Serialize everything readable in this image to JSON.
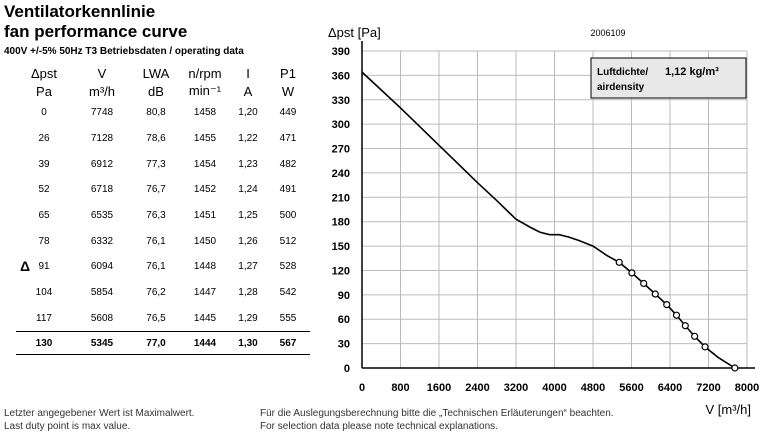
{
  "header": {
    "title_line1": "Ventilatorkennlinie",
    "title_line2": "fan performance curve",
    "subtitle": "400V +/-5% 50Hz T3 Betriebsdaten / operating data"
  },
  "table": {
    "headers": [
      "Δpst",
      "V",
      "LWA",
      "n/rpm",
      "I",
      "P1"
    ],
    "units": [
      "Pa",
      "m³/h",
      "dB",
      "min⁻¹",
      "A",
      "W"
    ],
    "rows": [
      [
        "0",
        "7748",
        "80,8",
        "1458",
        "1,20",
        "449"
      ],
      [
        "26",
        "7128",
        "78,6",
        "1455",
        "1,22",
        "471"
      ],
      [
        "39",
        "6912",
        "77,3",
        "1454",
        "1,23",
        "482"
      ],
      [
        "52",
        "6718",
        "76,7",
        "1452",
        "1,24",
        "491"
      ],
      [
        "65",
        "6535",
        "76,3",
        "1451",
        "1,25",
        "500"
      ],
      [
        "78",
        "6332",
        "76,1",
        "1450",
        "1,26",
        "512"
      ],
      [
        "91",
        "6094",
        "76,1",
        "1448",
        "1,27",
        "528"
      ],
      [
        "104",
        "5854",
        "76,2",
        "1447",
        "1,28",
        "542"
      ],
      [
        "117",
        "5608",
        "76,5",
        "1445",
        "1,29",
        "555"
      ],
      [
        "130",
        "5345",
        "77,0",
        "1444",
        "1,30",
        "567"
      ]
    ],
    "side_marker": "Δ"
  },
  "footer": {
    "left_line1": "Letzter angegebener Wert ist Maximalwert.",
    "left_line2": "Last duty point is max value.",
    "right_line1": "Für die Auslegungsberechnung bitte die „Technischen Erläuterungen“ beachten.",
    "right_line2": "For selection data please note technical explanations."
  },
  "chart_data": {
    "type": "line",
    "doc_number": "2006109",
    "ylabel": "Δpst [Pa]",
    "xlabel": "V [m³/h]",
    "xlim": [
      0,
      8000
    ],
    "ylim": [
      0,
      390
    ],
    "xticks": [
      0,
      800,
      1600,
      2400,
      3200,
      4000,
      4800,
      5600,
      6400,
      7200,
      8000
    ],
    "yticks": [
      0,
      30,
      60,
      90,
      120,
      150,
      180,
      210,
      240,
      270,
      300,
      330,
      360,
      390
    ],
    "grid": true,
    "annotation": {
      "label_line1": "Luftdichte/",
      "label_line2": "airdensity",
      "value": "1,12 kg/m³"
    },
    "curve": {
      "x": [
        0,
        400,
        800,
        1200,
        1600,
        2000,
        2400,
        2800,
        3200,
        3500,
        3700,
        3900,
        4100,
        4300,
        4500,
        4800,
        5100,
        5345,
        5608,
        5854,
        6094,
        6332,
        6535,
        6718,
        6912,
        7128,
        7400,
        7748
      ],
      "y": [
        364,
        342,
        320,
        297,
        274,
        251,
        228,
        206,
        183,
        173,
        167,
        164,
        164,
        161,
        157,
        150,
        138,
        130,
        117,
        104,
        91,
        78,
        65,
        52,
        39,
        26,
        13,
        0
      ]
    },
    "duty_points": {
      "x": [
        5345,
        5608,
        5854,
        6094,
        6332,
        6535,
        6718,
        6912,
        7128,
        7748
      ],
      "y": [
        130,
        117,
        104,
        91,
        78,
        65,
        52,
        39,
        26,
        0
      ]
    }
  }
}
